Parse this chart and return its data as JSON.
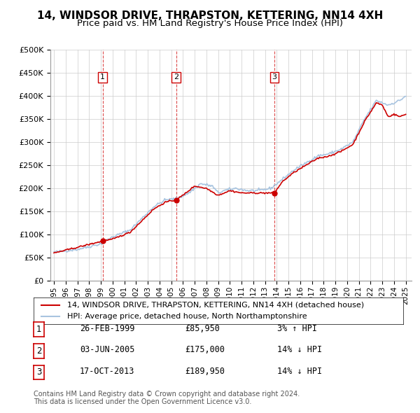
{
  "title": "14, WINDSOR DRIVE, THRAPSTON, KETTERING, NN14 4XH",
  "subtitle": "Price paid vs. HM Land Registry's House Price Index (HPI)",
  "xlabel": "",
  "ylabel": "",
  "ylim": [
    0,
    500000
  ],
  "yticks": [
    0,
    50000,
    100000,
    150000,
    200000,
    250000,
    300000,
    350000,
    400000,
    450000,
    500000
  ],
  "xlim_start": 1995.0,
  "xlim_end": 2025.5,
  "xticks": [
    1995,
    1996,
    1997,
    1998,
    1999,
    2000,
    2001,
    2002,
    2003,
    2004,
    2005,
    2006,
    2007,
    2008,
    2009,
    2010,
    2011,
    2012,
    2013,
    2014,
    2015,
    2016,
    2017,
    2018,
    2019,
    2020,
    2021,
    2022,
    2023,
    2024,
    2025
  ],
  "hpi_color": "#a8c4e0",
  "price_color": "#cc0000",
  "marker_color": "#cc0000",
  "vline_color": "#cc0000",
  "grid_color": "#cccccc",
  "background_color": "#ffffff",
  "sale_points": [
    {
      "year": 1999.15,
      "price": 85950,
      "label": "1"
    },
    {
      "year": 2005.42,
      "price": 175000,
      "label": "2"
    },
    {
      "year": 2013.79,
      "price": 189950,
      "label": "3"
    }
  ],
  "table_rows": [
    {
      "num": "1",
      "date": "26-FEB-1999",
      "price": "£85,950",
      "hpi": "3% ↑ HPI"
    },
    {
      "num": "2",
      "date": "03-JUN-2005",
      "price": "£175,000",
      "hpi": "14% ↓ HPI"
    },
    {
      "num": "3",
      "date": "17-OCT-2013",
      "price": "£189,950",
      "hpi": "14% ↓ HPI"
    }
  ],
  "legend_entries": [
    "14, WINDSOR DRIVE, THRAPSTON, KETTERING, NN14 4XH (detached house)",
    "HPI: Average price, detached house, North Northamptonshire"
  ],
  "footnote": "Contains HM Land Registry data © Crown copyright and database right 2024.\nThis data is licensed under the Open Government Licence v3.0.",
  "title_fontsize": 11,
  "subtitle_fontsize": 9.5,
  "tick_fontsize": 8,
  "legend_fontsize": 8,
  "table_fontsize": 8.5,
  "footnote_fontsize": 7
}
